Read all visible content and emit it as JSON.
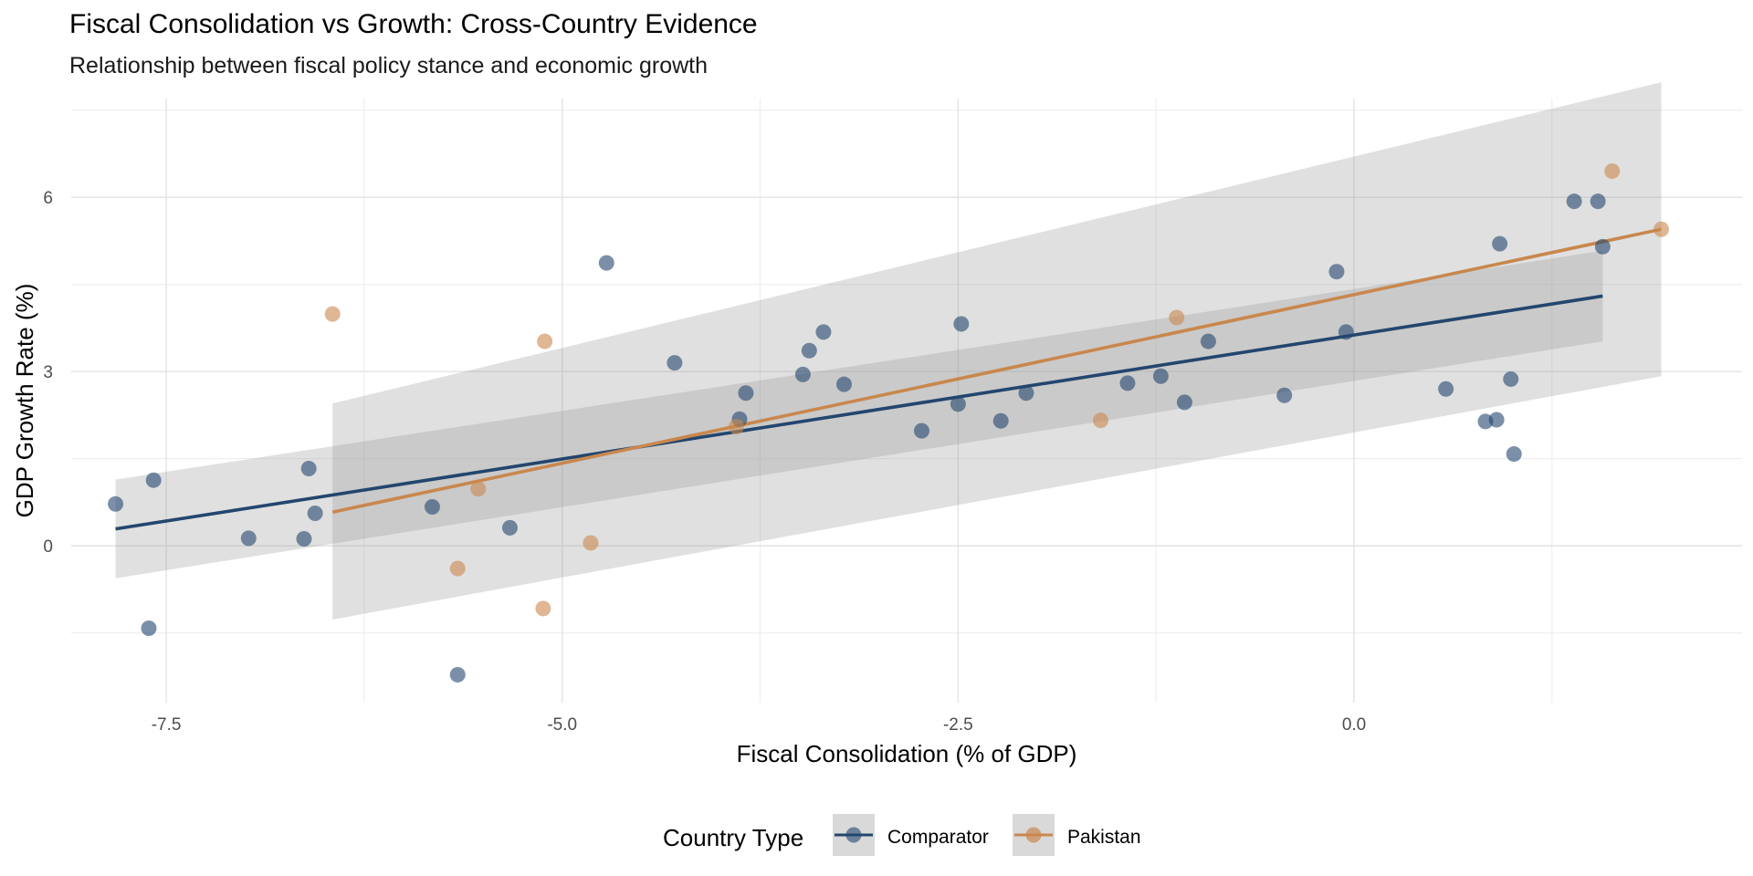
{
  "title": "Fiscal Consolidation vs Growth: Cross-Country Evidence",
  "subtitle": "Relationship between fiscal policy stance and economic growth",
  "chart_data": {
    "type": "scatter",
    "title": "Fiscal Consolidation vs Growth: Cross-Country Evidence",
    "subtitle": "Relationship between fiscal policy stance and economic growth",
    "xlabel": "Fiscal Consolidation (% of GDP)",
    "ylabel": "GDP Growth Rate (%)",
    "xlim": [
      -8.1,
      2.45
    ],
    "ylim": [
      -2.7,
      7.7
    ],
    "x_ticks": [
      -7.5,
      -5.0,
      -2.5,
      0.0
    ],
    "x_tick_labels": [
      "-7.5",
      "-5.0",
      "-2.5",
      "0.0"
    ],
    "y_ticks": [
      0,
      3,
      6
    ],
    "y_tick_labels": [
      "0",
      "3",
      "6"
    ],
    "grid": true,
    "legend": {
      "title": "Country Type",
      "position": "bottom"
    },
    "series": [
      {
        "name": "Comparator",
        "color": "#23466e",
        "points": [
          [
            -7.82,
            0.72
          ],
          [
            -7.58,
            1.13
          ],
          [
            -7.61,
            -1.42
          ],
          [
            -6.98,
            0.13
          ],
          [
            -6.63,
            0.12
          ],
          [
            -6.6,
            1.33
          ],
          [
            -6.56,
            0.56
          ],
          [
            -5.82,
            0.67
          ],
          [
            -5.33,
            0.31
          ],
          [
            -5.66,
            -2.22
          ],
          [
            -4.72,
            4.87
          ],
          [
            -4.29,
            3.15
          ],
          [
            -3.88,
            2.18
          ],
          [
            -3.84,
            2.63
          ],
          [
            -3.48,
            2.95
          ],
          [
            -3.44,
            3.36
          ],
          [
            -3.35,
            3.68
          ],
          [
            -3.22,
            2.78
          ],
          [
            -2.73,
            1.98
          ],
          [
            -2.48,
            3.82
          ],
          [
            -2.5,
            2.44
          ],
          [
            -2.23,
            2.15
          ],
          [
            -2.07,
            2.63
          ],
          [
            -1.43,
            2.8
          ],
          [
            -1.22,
            2.92
          ],
          [
            -1.07,
            2.47
          ],
          [
            -0.92,
            3.52
          ],
          [
            -0.44,
            2.59
          ],
          [
            -0.11,
            4.72
          ],
          [
            -0.05,
            3.68
          ],
          [
            0.58,
            2.7
          ],
          [
            0.83,
            2.14
          ],
          [
            0.9,
            2.17
          ],
          [
            0.92,
            5.2
          ],
          [
            0.99,
            2.87
          ],
          [
            1.01,
            1.58
          ],
          [
            1.39,
            5.93
          ],
          [
            1.54,
            5.93
          ],
          [
            1.57,
            5.15
          ]
        ],
        "fit": {
          "x": [
            -7.82,
            1.57
          ],
          "y": [
            0.29,
            4.3
          ]
        },
        "ci_band": {
          "x": [
            -7.82,
            1.57
          ],
          "lower": [
            -0.56,
            3.52
          ],
          "upper": [
            1.14,
            5.08
          ]
        }
      },
      {
        "name": "Pakistan",
        "color": "#c9874e",
        "points": [
          [
            -6.45,
            3.99
          ],
          [
            -5.53,
            0.98
          ],
          [
            -5.66,
            -0.39
          ],
          [
            -5.11,
            3.52
          ],
          [
            -5.12,
            -1.08
          ],
          [
            -4.82,
            0.05
          ],
          [
            -3.9,
            2.05
          ],
          [
            -1.6,
            2.16
          ],
          [
            -1.12,
            3.93
          ],
          [
            1.63,
            6.45
          ],
          [
            1.94,
            5.45
          ]
        ],
        "fit": {
          "x": [
            -6.45,
            1.94
          ],
          "y": [
            0.58,
            5.45
          ]
        },
        "ci_band": {
          "x": [
            -6.45,
            1.94
          ],
          "lower": [
            -1.27,
            2.92
          ],
          "upper": [
            2.45,
            7.98
          ]
        }
      }
    ]
  }
}
